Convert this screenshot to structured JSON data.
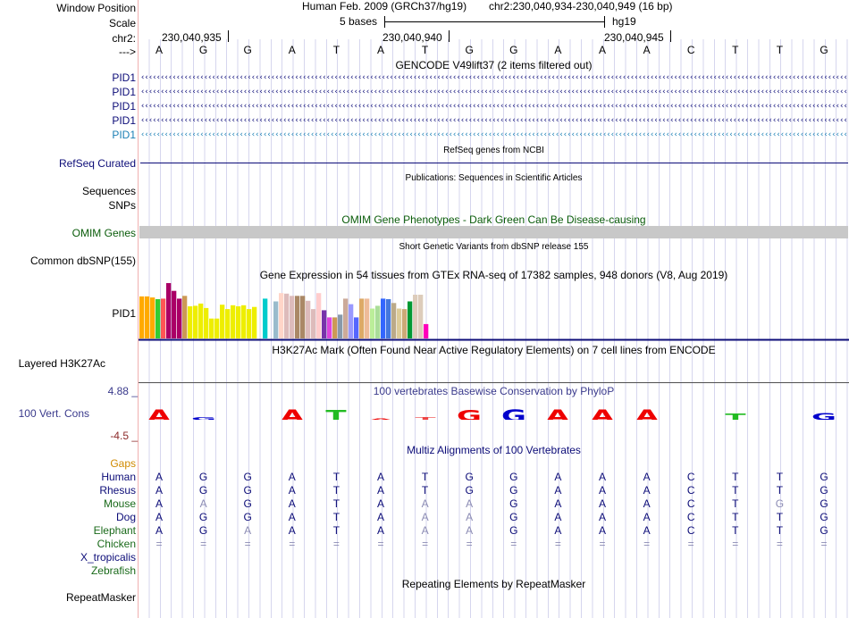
{
  "position": {
    "label_window": "Window Position",
    "label_scale": "Scale",
    "label_chr": "chr2:",
    "label_arrow": "--->",
    "assembly": "Human Feb. 2009 (GRCh37/hg19)",
    "coordinates": "chr2:230,040,934-230,040,949 (16 bp)",
    "scale_text": "5 bases",
    "db": "hg19",
    "ticks": [
      "230,040,935",
      "230,040,940",
      "230,040,945"
    ]
  },
  "sequence": [
    "A",
    "G",
    "G",
    "A",
    "T",
    "A",
    "T",
    "G",
    "G",
    "A",
    "A",
    "A",
    "C",
    "T",
    "T",
    "G"
  ],
  "gencode": {
    "title": "GENCODE V49lift37 (2 items filtered out)",
    "items": [
      "PID1",
      "PID1",
      "PID1",
      "PID1",
      "PID1"
    ],
    "colors": [
      "#0c0c78",
      "#0c0c78",
      "#0c0c78",
      "#0c0c78",
      "#1a7fb5"
    ]
  },
  "refseq": {
    "title": "RefSeq genes from NCBI",
    "label": "RefSeq Curated"
  },
  "publications": {
    "title": "Publications: Sequences in Scientific Articles",
    "label_seq": "Sequences",
    "label_snps": "SNPs"
  },
  "omim": {
    "title": "OMIM Gene Phenotypes - Dark Green Can Be Disease-causing",
    "label": "OMIM Genes"
  },
  "dbsnp": {
    "title": "Short Genetic Variants from dbSNP release 155",
    "label": "Common dbSNP(155)"
  },
  "gtex": {
    "title": "Gene Expression in 54 tissues from GTEx RNA-seq of 17382 samples, 948 donors (V8, Aug 2019)",
    "label": "PID1",
    "bars": [
      {
        "h": 0.76,
        "c": "#FFAA00"
      },
      {
        "h": 0.76,
        "c": "#FFAA00"
      },
      {
        "h": 0.74,
        "c": "#FFAA00"
      },
      {
        "h": 0.71,
        "c": "#33CC33"
      },
      {
        "h": 0.72,
        "c": "#FF5555"
      },
      {
        "h": 1.0,
        "c": "#AA0066"
      },
      {
        "h": 0.86,
        "c": "#AA0066"
      },
      {
        "h": 0.72,
        "c": "#AA0066"
      },
      {
        "h": 0.77,
        "c": "#CC9955"
      },
      {
        "h": 0.58,
        "c": "#EEEE00"
      },
      {
        "h": 0.59,
        "c": "#EEEE00"
      },
      {
        "h": 0.63,
        "c": "#EEEE00"
      },
      {
        "h": 0.55,
        "c": "#EEEE00"
      },
      {
        "h": 0.36,
        "c": "#EEEE00"
      },
      {
        "h": 0.36,
        "c": "#EEEE00"
      },
      {
        "h": 0.61,
        "c": "#EEEE00"
      },
      {
        "h": 0.53,
        "c": "#EEEE00"
      },
      {
        "h": 0.6,
        "c": "#EEEE00"
      },
      {
        "h": 0.58,
        "c": "#EEEE00"
      },
      {
        "h": 0.6,
        "c": "#EEEE00"
      },
      {
        "h": 0.53,
        "c": "#EEEE00"
      },
      {
        "h": 0.57,
        "c": "#EEEE00"
      },
      {
        "h": 0.0,
        "c": "#EEEE00"
      },
      {
        "h": 0.72,
        "c": "#00CCCC"
      },
      {
        "h": 0.0,
        "c": "#00CCCC"
      },
      {
        "h": 0.67,
        "c": "#99BBCC"
      },
      {
        "h": 0.82,
        "c": "#FFD5C8"
      },
      {
        "h": 0.81,
        "c": "#DDBBBB"
      },
      {
        "h": 0.77,
        "c": "#DDBBBB"
      },
      {
        "h": 0.77,
        "c": "#AA8866"
      },
      {
        "h": 0.77,
        "c": "#AA8866"
      },
      {
        "h": 0.68,
        "c": "#DDBBBB"
      },
      {
        "h": 0.53,
        "c": "#DDBBBB"
      },
      {
        "h": 0.82,
        "c": "#FFCCCC"
      },
      {
        "h": 0.51,
        "c": "#7733AA"
      },
      {
        "h": 0.38,
        "c": "#DD44DD"
      },
      {
        "h": 0.38,
        "c": "#CC9955"
      },
      {
        "h": 0.43,
        "c": "#8899AA"
      },
      {
        "h": 0.72,
        "c": "#CCAA99"
      },
      {
        "h": 0.62,
        "c": "#9999FF"
      },
      {
        "h": 0.38,
        "c": "#5566FF"
      },
      {
        "h": 0.72,
        "c": "#DDAA66"
      },
      {
        "h": 0.72,
        "c": "#EEBB99"
      },
      {
        "h": 0.54,
        "c": "#BBEE99"
      },
      {
        "h": 0.59,
        "c": "#AADD99"
      },
      {
        "h": 0.72,
        "c": "#3366FF"
      },
      {
        "h": 0.71,
        "c": "#4477DD"
      },
      {
        "h": 0.64,
        "c": "#BBAA88"
      },
      {
        "h": 0.54,
        "c": "#DDCC99"
      },
      {
        "h": 0.53,
        "c": "#CCAA77"
      },
      {
        "h": 0.67,
        "c": "#009933"
      },
      {
        "h": 0.79,
        "c": "#DDCCBB"
      },
      {
        "h": 0.79,
        "c": "#DDCCBB"
      },
      {
        "h": 0.26,
        "c": "#FF00BB"
      }
    ]
  },
  "h3k27ac": {
    "title": "H3K27Ac Mark (Often Found Near Active Regulatory Elements) on 7 cell lines from ENCODE",
    "label": "Layered H3K27Ac"
  },
  "phylop": {
    "title": "100 vertebrates Basewise Conservation by PhyloP",
    "label": "100 Vert. Cons",
    "max_label": "4.88 _",
    "min_label": "-4.5 _",
    "scores": [
      {
        "b": "A",
        "v": 1.0,
        "c": "#EE0000"
      },
      {
        "b": "G",
        "v": 0.22,
        "c": "#0000CC"
      },
      {
        "b": "G",
        "v": 0.0,
        "c": "#0000CC"
      },
      {
        "b": "A",
        "v": 1.0,
        "c": "#EE0000"
      },
      {
        "b": "T",
        "v": 0.9,
        "c": "#22BB22"
      },
      {
        "b": "A",
        "v": 0.12,
        "c": "#EE0000"
      },
      {
        "b": "T",
        "v": 0.22,
        "c": "#EE4444"
      },
      {
        "b": "G",
        "v": 0.9,
        "c": "#EE0000"
      },
      {
        "b": "G",
        "v": 1.0,
        "c": "#0000CC"
      },
      {
        "b": "A",
        "v": 1.0,
        "c": "#EE0000"
      },
      {
        "b": "A",
        "v": 1.0,
        "c": "#EE0000"
      },
      {
        "b": "A",
        "v": 1.0,
        "c": "#EE0000"
      },
      {
        "b": "C",
        "v": 0.0,
        "c": "#000000"
      },
      {
        "b": "T",
        "v": 0.6,
        "c": "#22BB22"
      },
      {
        "b": "T",
        "v": 0.0,
        "c": "#000000"
      },
      {
        "b": "G",
        "v": 0.55,
        "c": "#0000CC"
      }
    ]
  },
  "multiz": {
    "title": "Multiz Alignments of 100 Vertebrates",
    "gaps_label": "Gaps",
    "species": [
      {
        "name": "Human",
        "color": "#0c0c78",
        "seq": [
          "A",
          "G",
          "G",
          "A",
          "T",
          "A",
          "T",
          "G",
          "G",
          "A",
          "A",
          "A",
          "C",
          "T",
          "T",
          "G"
        ],
        "dim": []
      },
      {
        "name": "Rhesus",
        "color": "#0c0c78",
        "seq": [
          "A",
          "G",
          "G",
          "A",
          "T",
          "A",
          "T",
          "G",
          "G",
          "A",
          "A",
          "A",
          "C",
          "T",
          "T",
          "G"
        ],
        "dim": []
      },
      {
        "name": "Mouse",
        "color": "#1a6a1a",
        "seq": [
          "A",
          "A",
          "G",
          "A",
          "T",
          "A",
          "A",
          "A",
          "G",
          "A",
          "A",
          "A",
          "C",
          "T",
          "G",
          "G"
        ],
        "dim": [
          1,
          6,
          7,
          14
        ]
      },
      {
        "name": "Dog",
        "color": "#0c0c78",
        "seq": [
          "A",
          "G",
          "G",
          "A",
          "T",
          "A",
          "A",
          "A",
          "G",
          "A",
          "A",
          "A",
          "C",
          "T",
          "T",
          "G"
        ],
        "dim": [
          6,
          7
        ]
      },
      {
        "name": "Elephant",
        "color": "#1a6a1a",
        "seq": [
          "A",
          "G",
          "A",
          "A",
          "T",
          "A",
          "A",
          "A",
          "G",
          "A",
          "A",
          "A",
          "C",
          "T",
          "T",
          "G"
        ],
        "dim": [
          2,
          6,
          7
        ]
      },
      {
        "name": "Chicken",
        "color": "#1a6a1a",
        "seq": [
          "=",
          "=",
          "=",
          "=",
          "=",
          "=",
          "=",
          "=",
          "=",
          "=",
          "=",
          "=",
          "=",
          "=",
          "=",
          "="
        ],
        "dim": [
          0,
          1,
          2,
          3,
          4,
          5,
          6,
          7,
          8,
          9,
          10,
          11,
          12,
          13,
          14,
          15
        ]
      },
      {
        "name": "X_tropicalis",
        "color": "#0c0c78",
        "seq": [],
        "dim": []
      },
      {
        "name": "Zebrafish",
        "color": "#1a6a1a",
        "seq": [],
        "dim": []
      }
    ]
  },
  "repeatmasker": {
    "title": "Repeating Elements by RepeatMasker",
    "label": "RepeatMasker"
  }
}
